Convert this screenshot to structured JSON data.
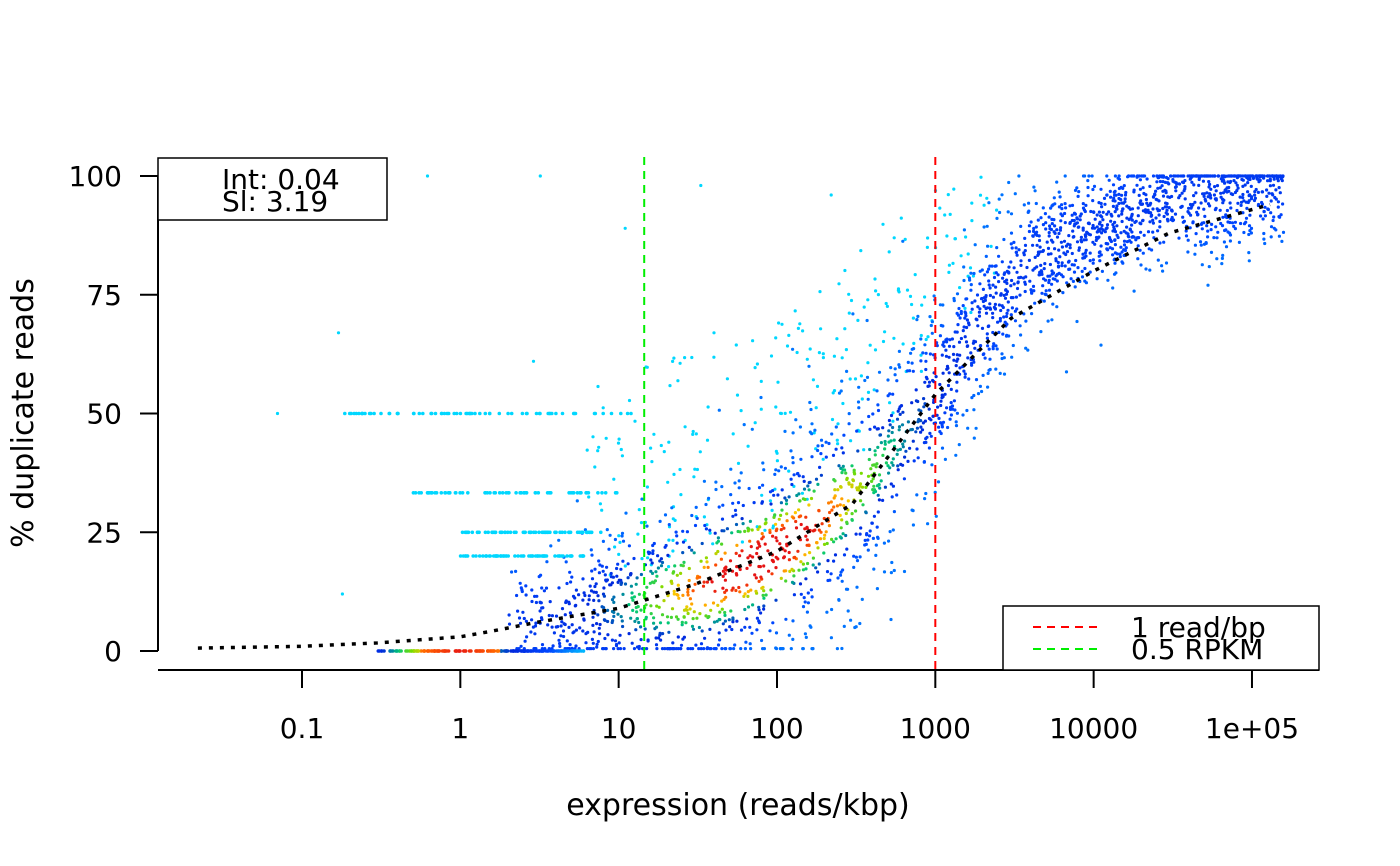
{
  "chart_data": {
    "type": "scatter",
    "title": "",
    "xlabel": "expression (reads/kbp)",
    "ylabel": "% duplicate reads",
    "xscale": "log",
    "xlim": [
      0.012,
      200000
    ],
    "ylim": [
      0,
      100
    ],
    "x_ticks": [
      0.1,
      1,
      10,
      100,
      1000,
      10000,
      100000
    ],
    "x_tick_labels": [
      "0.1",
      "1",
      "10",
      "100",
      "1000",
      "10000",
      "1e+05"
    ],
    "y_ticks": [
      0,
      25,
      50,
      75,
      100
    ],
    "y_tick_labels": [
      "0",
      "25",
      "50",
      "75",
      "100"
    ],
    "grid": false,
    "color_scheme": "density (blue low, green/yellow mid, red high)",
    "fit_text": {
      "intercept": "Int: 0.04",
      "slope": "Sl: 3.19"
    },
    "fit_curve": {
      "name": "fit",
      "style": "dotted",
      "color": "#000000",
      "points": [
        [
          0.022,
          0.6
        ],
        [
          0.1,
          1.0
        ],
        [
          0.3,
          1.7
        ],
        [
          1,
          3
        ],
        [
          1.6,
          4.2
        ],
        [
          3,
          6
        ],
        [
          10,
          9
        ],
        [
          30,
          14
        ],
        [
          100,
          21
        ],
        [
          300,
          31
        ],
        [
          1000,
          54
        ],
        [
          3000,
          70
        ],
        [
          10000,
          80
        ],
        [
          30000,
          88
        ],
        [
          130000,
          94
        ]
      ]
    },
    "reference_lines": [
      {
        "name": "1 read/bp",
        "x": 1000,
        "color": "#ff0000",
        "style": "dashed"
      },
      {
        "name": "0.5 RPKM",
        "x": 14.5,
        "color": "#00ee00",
        "style": "dashed"
      }
    ],
    "legend": {
      "position": "bottom-right",
      "entries": [
        {
          "label": "1 read/bp",
          "color": "#ff0000"
        },
        {
          "label": "0.5 RPKM",
          "color": "#00ee00"
        }
      ]
    },
    "density_bands": [
      {
        "x_range": [
          0.3,
          6
        ],
        "y": 0,
        "label": "zero-duplicate band"
      },
      {
        "x_range": [
          0.18,
          12
        ],
        "y": 50,
        "label": "50% band"
      },
      {
        "x_range": [
          0.5,
          10
        ],
        "y": 33.3,
        "label": "33% band"
      },
      {
        "x_range": [
          1,
          8
        ],
        "y": 25,
        "label": "25% band"
      },
      {
        "x_range": [
          1,
          6
        ],
        "y": 20,
        "label": "20% band"
      }
    ],
    "density_core": {
      "x": 80,
      "y": 20,
      "description": "highest density region"
    },
    "outlier_points": [
      [
        0.07,
        50
      ],
      [
        0.17,
        67
      ],
      [
        0.18,
        12
      ],
      [
        0.62,
        100
      ],
      [
        2.9,
        61
      ],
      [
        3.2,
        100
      ],
      [
        11,
        89
      ],
      [
        33,
        98
      ],
      [
        40,
        67
      ],
      [
        220,
        96
      ],
      [
        550,
        87
      ]
    ]
  }
}
